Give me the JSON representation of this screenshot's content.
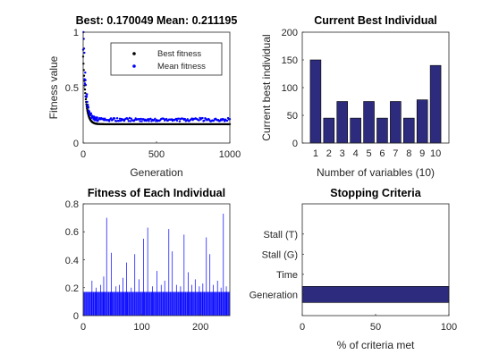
{
  "colors": {
    "best_dots": "#000000",
    "mean_dots": "#0000ff",
    "bar_fill": "#2c2b7e",
    "stem_blue": "#0000ff",
    "axis": "#262626"
  },
  "chart_data": [
    {
      "id": "fitness",
      "type": "scatter",
      "title": "Best: 0.170049 Mean: 0.211195",
      "xlabel": "Generation",
      "ylabel": "Fitness value",
      "xlim": [
        0,
        1000
      ],
      "ylim": [
        0,
        1
      ],
      "xticks": [
        "0",
        "500",
        "1000"
      ],
      "yticks": [
        "0",
        "0.5",
        "1"
      ],
      "legend": {
        "position": "top-right",
        "entries": [
          "Best fitness",
          "Mean fitness"
        ]
      },
      "series": [
        {
          "name": "Best fitness",
          "converged_value": 0.170049,
          "start_value": 0.78,
          "generations": 1000
        },
        {
          "name": "Mean fitness",
          "converged_value": 0.211195,
          "start_value": 1.0,
          "generations": 1000
        }
      ]
    },
    {
      "id": "best-individual",
      "type": "bar",
      "title": "Current Best Individual",
      "xlabel": "Number of variables (10)",
      "ylabel": "Current best individual",
      "categories": [
        "1",
        "2",
        "3",
        "4",
        "5",
        "6",
        "7",
        "8",
        "9",
        "10"
      ],
      "values": [
        150,
        45,
        75,
        45,
        75,
        45,
        75,
        45,
        78,
        140
      ],
      "ylim": [
        0,
        200
      ],
      "yticks": [
        "0",
        "50",
        "100",
        "150",
        "200"
      ]
    },
    {
      "id": "each-individual",
      "type": "bar",
      "title": "Fitness of Each Individual",
      "xlim": [
        0,
        250
      ],
      "ylim": [
        0,
        0.8
      ],
      "xticks": [
        "0",
        "100",
        "200"
      ],
      "yticks": [
        "0",
        "0.2",
        "0.4",
        "0.6",
        "0.8"
      ],
      "baseline_value": 0.17,
      "spikes": [
        {
          "x": 15,
          "y": 0.25
        },
        {
          "x": 22,
          "y": 0.2
        },
        {
          "x": 30,
          "y": 0.22
        },
        {
          "x": 35,
          "y": 0.28
        },
        {
          "x": 40,
          "y": 0.7
        },
        {
          "x": 48,
          "y": 0.45
        },
        {
          "x": 56,
          "y": 0.21
        },
        {
          "x": 62,
          "y": 0.22
        },
        {
          "x": 68,
          "y": 0.27
        },
        {
          "x": 74,
          "y": 0.38
        },
        {
          "x": 82,
          "y": 0.2
        },
        {
          "x": 88,
          "y": 0.44
        },
        {
          "x": 95,
          "y": 0.26
        },
        {
          "x": 103,
          "y": 0.55
        },
        {
          "x": 110,
          "y": 0.63
        },
        {
          "x": 118,
          "y": 0.21
        },
        {
          "x": 126,
          "y": 0.32
        },
        {
          "x": 133,
          "y": 0.22
        },
        {
          "x": 139,
          "y": 0.25
        },
        {
          "x": 146,
          "y": 0.62
        },
        {
          "x": 152,
          "y": 0.46
        },
        {
          "x": 159,
          "y": 0.22
        },
        {
          "x": 166,
          "y": 0.21
        },
        {
          "x": 172,
          "y": 0.58
        },
        {
          "x": 179,
          "y": 0.31
        },
        {
          "x": 185,
          "y": 0.22
        },
        {
          "x": 191,
          "y": 0.26
        },
        {
          "x": 198,
          "y": 0.21
        },
        {
          "x": 204,
          "y": 0.23
        },
        {
          "x": 210,
          "y": 0.56
        },
        {
          "x": 216,
          "y": 0.44
        },
        {
          "x": 222,
          "y": 0.22
        },
        {
          "x": 229,
          "y": 0.25
        },
        {
          "x": 235,
          "y": 0.2
        },
        {
          "x": 239,
          "y": 0.73
        },
        {
          "x": 244,
          "y": 0.21
        }
      ]
    },
    {
      "id": "stopping",
      "type": "bar",
      "orientation": "horizontal",
      "title": "Stopping Criteria",
      "xlabel": "% of criteria met",
      "categories": [
        "Generation",
        "Time",
        "Stall (G)",
        "Stall (T)"
      ],
      "values": [
        100,
        0,
        0,
        0
      ],
      "xlim": [
        0,
        100
      ],
      "xticks": [
        "0",
        "50",
        "100"
      ]
    }
  ]
}
